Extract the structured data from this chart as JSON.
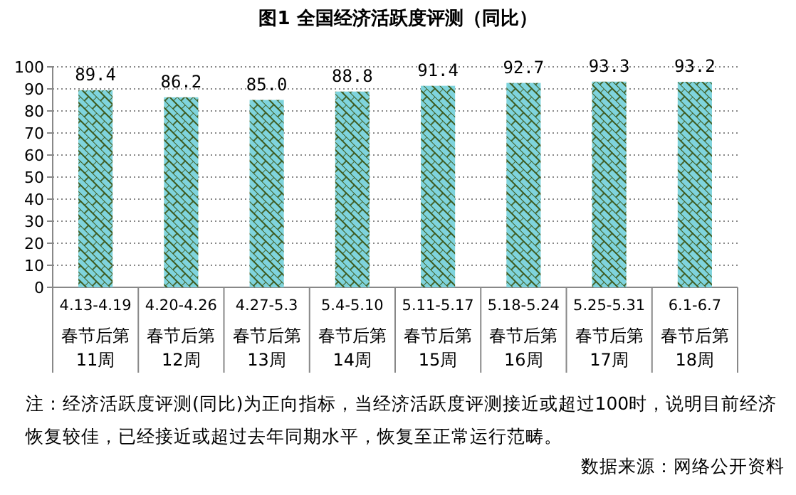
{
  "chart_data": {
    "type": "bar",
    "title": "图1 全国经济活跃度评测（同比）",
    "categories": [
      "4.13-4.19\n春节后第\n11周",
      "4.20-4.26\n春节后第\n12周",
      "4.27-5.3\n春节后第\n13周",
      "5.4-5.10\n春节后第\n14周",
      "5.11-5.17\n春节后第\n15周",
      "5.18-5.24\n春节后第\n16周",
      "5.25-5.31\n春节后第\n17周",
      "6.1-6.7\n春节后第\n18周"
    ],
    "values": [
      89.4,
      86.2,
      85.0,
      88.8,
      91.4,
      92.7,
      93.3,
      93.2
    ],
    "value_labels": [
      "89.4",
      "86.2",
      "85.0",
      "88.8",
      "91.4",
      "92.7",
      "93.3",
      "93.2"
    ],
    "color": "#7fd4dd",
    "ylim": [
      0,
      100
    ],
    "yticks": [
      0,
      10,
      20,
      30,
      40,
      50,
      60,
      70,
      80,
      90,
      100
    ],
    "grid": "y",
    "annotations": [
      "注：经济活跃度评测(同比)为正向指标，当经济活跃度评测接近或超过100时，说明目前经济恢复较佳，已经接近或超过去年同期水平，恢复至正常运行范畴。",
      "数据来源：网络公开资料"
    ]
  }
}
